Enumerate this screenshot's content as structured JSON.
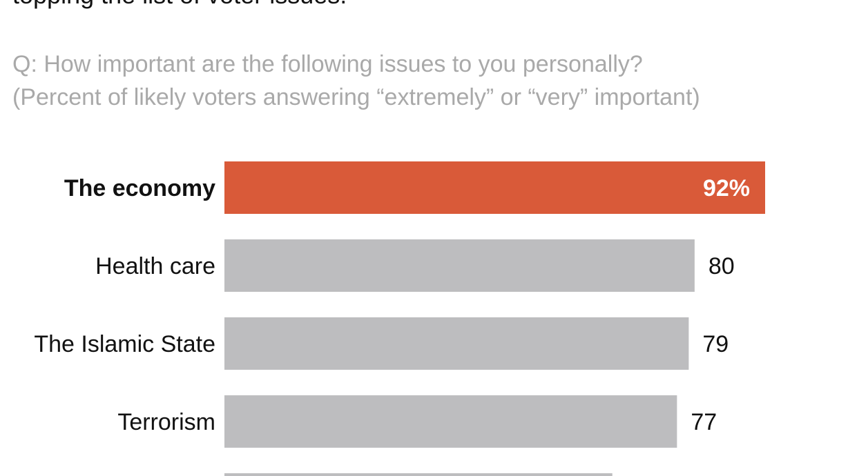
{
  "chart_data": {
    "type": "bar",
    "orientation": "horizontal",
    "title": "topping the list of voter issues.",
    "subtitle": [
      "Q: How important are the following issues to you personally?",
      "(Percent of likely voters answering “extremely” or “very” important)"
    ],
    "categories": [
      "The economy",
      "Health care",
      "The Islamic State",
      "Terrorism",
      ""
    ],
    "values": [
      92,
      80,
      79,
      77,
      66
    ],
    "value_labels": [
      "92%",
      "80",
      "79",
      "77",
      ""
    ],
    "highlight_index": 0,
    "colors": {
      "highlight": "#d95a39",
      "bar": "#bdbdbf",
      "label": "#111111",
      "subtitle": "#a9a9a9"
    },
    "xlim": [
      0,
      92
    ],
    "grid": false,
    "legend": "none"
  }
}
